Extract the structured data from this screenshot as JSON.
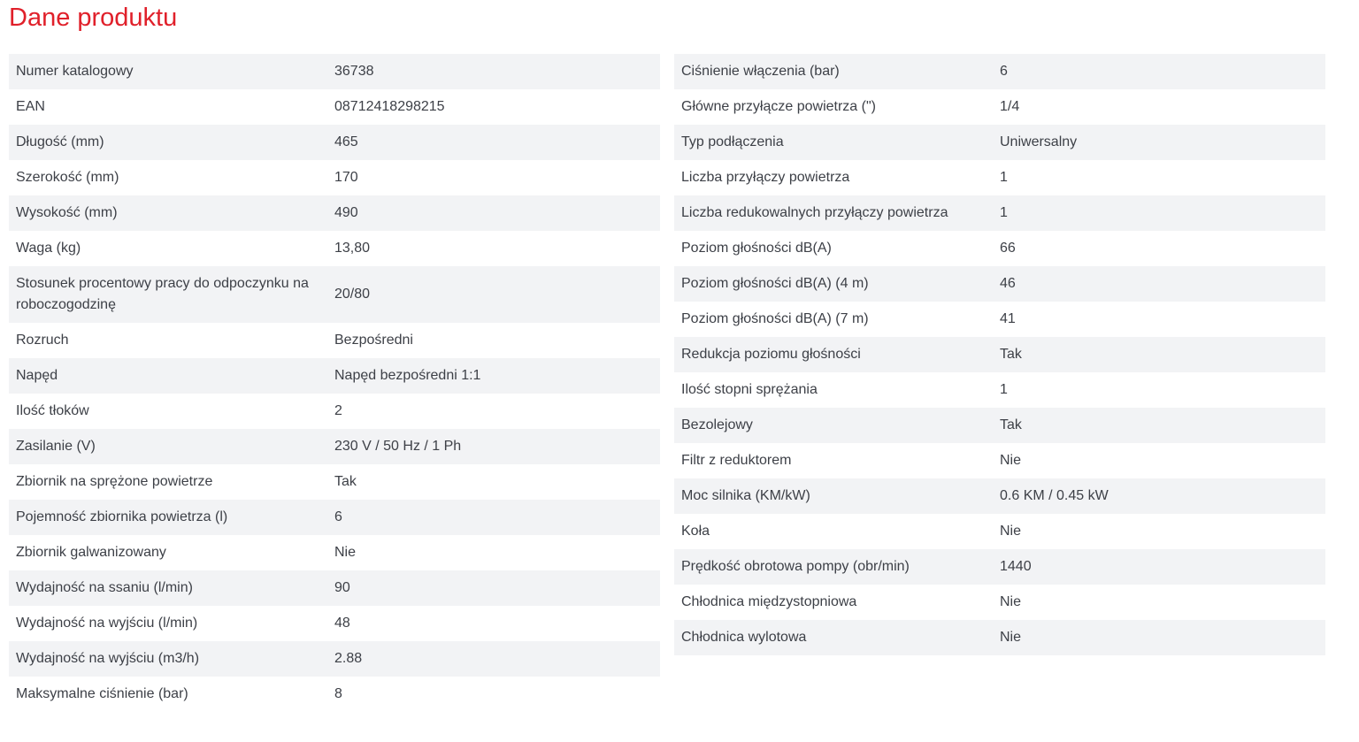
{
  "title": "Dane produktu",
  "left": [
    {
      "label": "Numer katalogowy",
      "value": "36738"
    },
    {
      "label": "EAN",
      "value": "08712418298215"
    },
    {
      "label": "Długość (mm)",
      "value": "465"
    },
    {
      "label": "Szerokość (mm)",
      "value": "170"
    },
    {
      "label": "Wysokość (mm)",
      "value": "490"
    },
    {
      "label": "Waga (kg)",
      "value": "13,80"
    },
    {
      "label": "Stosunek procentowy pracy do odpoczynku na roboczogodzinę",
      "value": "20/80"
    },
    {
      "label": "Rozruch",
      "value": "Bezpośredni"
    },
    {
      "label": "Napęd",
      "value": "Napęd bezpośredni 1:1"
    },
    {
      "label": "Ilość tłoków",
      "value": "2"
    },
    {
      "label": "Zasilanie (V)",
      "value": "230 V / 50 Hz / 1 Ph"
    },
    {
      "label": "Zbiornik na sprężone powietrze",
      "value": "Tak"
    },
    {
      "label": "Pojemność zbiornika powietrza (l)",
      "value": "6"
    },
    {
      "label": "Zbiornik galwanizowany",
      "value": "Nie"
    },
    {
      "label": "Wydajność na ssaniu (l/min)",
      "value": "90"
    },
    {
      "label": "Wydajność na wyjściu (l/min)",
      "value": "48"
    },
    {
      "label": "Wydajność na wyjściu (m3/h)",
      "value": "2.88"
    },
    {
      "label": "Maksymalne ciśnienie (bar)",
      "value": "8"
    }
  ],
  "right": [
    {
      "label": "Ciśnienie włączenia (bar)",
      "value": "6"
    },
    {
      "label": "Główne przyłącze powietrza (\")",
      "value": "1/4"
    },
    {
      "label": "Typ podłączenia",
      "value": "Uniwersalny"
    },
    {
      "label": "Liczba przyłączy powietrza",
      "value": "1"
    },
    {
      "label": "Liczba redukowalnych przyłączy powietrza",
      "value": "1"
    },
    {
      "label": "Poziom głośności dB(A)",
      "value": "66"
    },
    {
      "label": "Poziom głośności dB(A) (4 m)",
      "value": "46"
    },
    {
      "label": "Poziom głośności dB(A) (7 m)",
      "value": "41"
    },
    {
      "label": "Redukcja poziomu głośności",
      "value": "Tak"
    },
    {
      "label": "Ilość stopni sprężania",
      "value": "1"
    },
    {
      "label": "Bezolejowy",
      "value": "Tak"
    },
    {
      "label": "Filtr z reduktorem",
      "value": "Nie"
    },
    {
      "label": "Moc silnika (KM/kW)",
      "value": "0.6 KM / 0.45 kW"
    },
    {
      "label": "Koła",
      "value": "Nie"
    },
    {
      "label": "Prędkość obrotowa pompy (obr/min)",
      "value": "1440"
    },
    {
      "label": "Chłodnica międzystopniowa",
      "value": "Nie"
    },
    {
      "label": "Chłodnica wylotowa",
      "value": "Nie"
    }
  ],
  "colors": {
    "title": "#e0202a",
    "stripe": "#f2f3f5",
    "text": "#3d4047"
  }
}
